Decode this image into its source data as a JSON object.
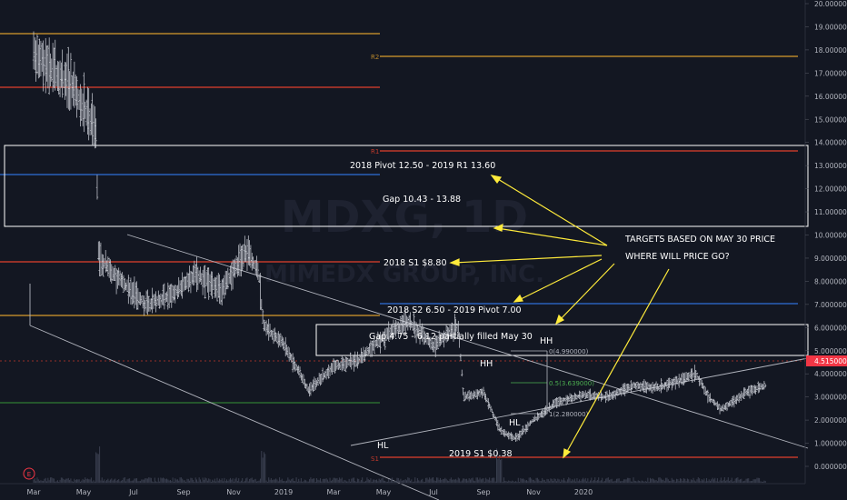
{
  "watermark": {
    "symbol": "MDXG, 1D",
    "name": "MIMEDX GROUP, INC."
  },
  "price_tag": {
    "text": "4.515000",
    "color": "#f23645"
  },
  "annotations": {
    "pivot_2018": "2018 Pivot 12.50 - 2019 R1 13.60",
    "gap_upper": "Gap 10.43 - 13.88",
    "s1_2018": "2018 S1 $8.80",
    "s2_2018": "2018 S2 6.50 - 2019 Pivot 7.00",
    "gap_lower": "Gap 4.75 - 6.12 partially filled May 30",
    "s1_2019": "2019 S1 $0.38",
    "targets_line1": "TARGETS BASED ON MAY 30 PRICE",
    "targets_line2": "WHERE WILL PRICE GO?",
    "hh1": "HH",
    "hh2": "HH",
    "hl1": "HL",
    "hl2": "HL",
    "r2": "R2",
    "r1": "R1",
    "s1_small": "S1",
    "fib0": "0(4.990000)",
    "fib05": "0.5(3.639000)",
    "fib1": "1(2.280000)",
    "event_icon": "E"
  },
  "colors": {
    "background": "#131722",
    "bars": "#d1d4dc",
    "orange": "#b8862b",
    "red": "#c0392b",
    "blue": "#2e6fd8",
    "green": "#2e7d32",
    "arrow": "#ffeb3b",
    "channel": "#b2b5be"
  },
  "chart_data": {
    "type": "bar",
    "title": "MDXG, 1D",
    "subtitle": "MIMEDX GROUP, INC.",
    "ylim": [
      0,
      20
    ],
    "y_ticks": [
      "0.000000",
      "1.000000",
      "2.000000",
      "3.000000",
      "4.000000",
      "5.000000",
      "6.000000",
      "7.000000",
      "8.000000",
      "9.000000",
      "10.000000",
      "11.000000",
      "12.000000",
      "13.000000",
      "14.000000",
      "15.000000",
      "16.000000",
      "17.000000",
      "18.000000",
      "19.000000",
      "20.000000"
    ],
    "x_ticks": [
      "Mar",
      "May",
      "Jul",
      "Sep",
      "Nov",
      "2019",
      "Mar",
      "May",
      "Jul",
      "Sep",
      "Nov",
      "2020"
    ],
    "last_price": 4.515,
    "price_path": [
      [
        0.0,
        17.8
      ],
      [
        1.5,
        16.5
      ],
      [
        2.5,
        14.5
      ],
      [
        2.6,
        9.0
      ],
      [
        3.5,
        8.0
      ],
      [
        4.5,
        7.0
      ],
      [
        5.5,
        7.4
      ],
      [
        6.5,
        8.3
      ],
      [
        7.5,
        7.6
      ],
      [
        8.5,
        9.3
      ],
      [
        9.0,
        8.4
      ],
      [
        9.2,
        6.1
      ],
      [
        10.0,
        5.3
      ],
      [
        11.0,
        3.3
      ],
      [
        12.0,
        4.3
      ],
      [
        13.0,
        4.6
      ],
      [
        14.0,
        5.6
      ],
      [
        15.0,
        6.3
      ],
      [
        16.0,
        5.2
      ],
      [
        17.0,
        6.1
      ],
      [
        17.2,
        3.0
      ],
      [
        18.0,
        3.2
      ],
      [
        18.7,
        1.5
      ],
      [
        19.3,
        1.2
      ],
      [
        20.0,
        2.0
      ],
      [
        21.0,
        2.8
      ],
      [
        22.0,
        3.1
      ],
      [
        23.0,
        3.0
      ],
      [
        24.0,
        3.5
      ],
      [
        25.0,
        3.4
      ],
      [
        26.0,
        3.8
      ],
      [
        26.5,
        4.0
      ],
      [
        27.0,
        3.0
      ],
      [
        27.5,
        2.45
      ],
      [
        28.0,
        2.8
      ],
      [
        28.5,
        3.2
      ],
      [
        29.3,
        3.5
      ]
    ],
    "horizontal_levels": [
      {
        "label": "R2",
        "value": 17.7,
        "color": "#b8862b"
      },
      {
        "label": "R1",
        "value": 13.6,
        "color": "#c0392b"
      },
      {
        "label": "2018 S1",
        "value": 8.8,
        "color": "#c0392b"
      },
      {
        "label": "2018 S2 / 2019 Pivot",
        "value": 7.0,
        "color": "#2e6fd8"
      },
      {
        "label": "S1",
        "value": 0.38,
        "color": "#c0392b"
      }
    ],
    "fib_levels": [
      {
        "label": "0",
        "value": 4.99
      },
      {
        "label": "0.5",
        "value": 3.639
      },
      {
        "label": "1",
        "value": 2.28
      }
    ]
  }
}
